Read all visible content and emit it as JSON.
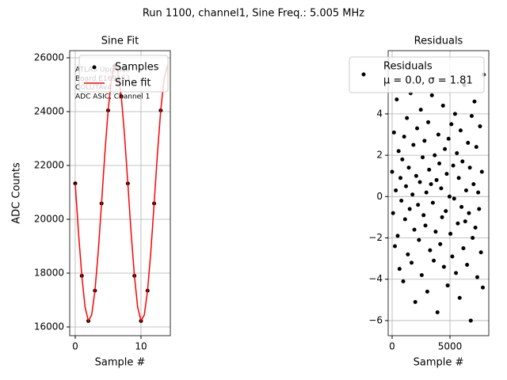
{
  "title": "Run 1100, channel1, Sine Freq.: 5.005 MHz",
  "chart_data": [
    {
      "type": "line",
      "title": "Sine Fit",
      "xlabel": "Sample #",
      "ylabel": "ADC Counts",
      "annotation": [
        "ATLAS Upgrade",
        " Board E169153",
        "COLUTAv4",
        "ADC ASIC, Channel 1"
      ],
      "xlim": [
        -0.84,
        14.46
      ],
      "xticks": [
        0,
        10
      ],
      "ylim": [
        15676,
        26265
      ],
      "yticks": [
        16000,
        18000,
        20000,
        22000,
        24000,
        26000
      ],
      "grid": true,
      "legend": "upper right",
      "series": [
        {
          "name": "Samples",
          "color": "#000000",
          "marker": "circle",
          "linestyle": "none",
          "x": [
            0,
            1,
            2,
            3,
            4,
            5,
            6,
            7,
            8,
            9,
            10,
            11,
            12,
            13
          ],
          "values": [
            21331,
            17901,
            16224,
            17350,
            20589,
            24043,
            25696,
            24570,
            21331,
            17901,
            16224,
            17350,
            20589,
            24043
          ]
        },
        {
          "name": "Sine fit",
          "color": "#ff0000",
          "marker": "none",
          "linestyle": "solid",
          "x": [
            0,
            0.5,
            1,
            1.5,
            2,
            2.5,
            3,
            3.5,
            4,
            4.5,
            5,
            5.5,
            6,
            6.5,
            7,
            7.5,
            8,
            8.5,
            9,
            9.5,
            10,
            10.5,
            11,
            11.5,
            12,
            12.5,
            13,
            13.5,
            14
          ],
          "values": [
            21331,
            19492,
            17901,
            16728,
            16224,
            16443,
            17350,
            18803,
            20589,
            22428,
            24043,
            25192,
            25696,
            25477,
            24570,
            23117,
            21331,
            19492,
            17901,
            16728,
            16224,
            16443,
            17350,
            18803,
            20589,
            22428,
            24043,
            25192,
            25696
          ]
        }
      ]
    },
    {
      "type": "scatter",
      "title": "Residuals",
      "xlabel": "Sample #",
      "xlim": [
        -342,
        8356
      ],
      "xticks": [
        0,
        5000
      ],
      "ylim": [
        -6.73,
        7.06
      ],
      "yticks": [
        {
          "value": -6,
          "label": "−6"
        },
        {
          "value": -4,
          "label": "−4"
        },
        {
          "value": -2,
          "label": "−2"
        },
        0,
        2,
        4
      ],
      "grid": true,
      "legend": "upper right",
      "stats_label": "μ = 0.0, σ = 1.81",
      "series": [
        {
          "name": "Residuals",
          "color": "#000000",
          "marker": "circle",
          "linestyle": "none",
          "x": [
            0,
            80,
            160,
            240,
            320,
            400,
            480,
            560,
            640,
            720,
            800,
            880,
            960,
            1040,
            1120,
            1200,
            1280,
            1360,
            1440,
            1520,
            1600,
            1680,
            1760,
            1840,
            1920,
            2000,
            2080,
            2160,
            2240,
            2320,
            2400,
            2480,
            2560,
            2640,
            2720,
            2800,
            2880,
            2960,
            3040,
            3120,
            3200,
            3280,
            3360,
            3440,
            3520,
            3600,
            3680,
            3760,
            3840,
            3920,
            4000,
            4080,
            4160,
            4240,
            4320,
            4400,
            4480,
            4560,
            4640,
            4720,
            4800,
            4880,
            4960,
            5040,
            5120,
            5200,
            5280,
            5360,
            5440,
            5520,
            5600,
            5680,
            5760,
            5840,
            5920,
            6000,
            6080,
            6160,
            6240,
            6320,
            6400,
            6480,
            6560,
            6640,
            6720,
            6800,
            6880,
            6960,
            7040,
            7120,
            7200,
            7280,
            7360,
            7440,
            7520,
            7600,
            7680,
            7760,
            7840,
            7920
          ],
          "values": [
            1.2,
            -0.8,
            3.1,
            -2.4,
            0.3,
            4.7,
            -1.9,
            2.2,
            -3.5,
            0.9,
            -0.2,
            1.8,
            -4.1,
            2.9,
            -1.1,
            0.5,
            3.8,
            -2.8,
            1.4,
            -0.6,
            5.0,
            -3.2,
            0.1,
            2.5,
            -1.6,
            -5.1,
            1.0,
            3.3,
            -0.4,
            -2.1,
            0.7,
            4.2,
            -3.8,
            1.9,
            -0.9,
            2.7,
            -1.4,
            0.2,
            -4.6,
            3.6,
            1.3,
            -2.6,
            0.6,
            4.9,
            -0.3,
            -3.1,
            2.0,
            -1.7,
            0.8,
            -5.6,
            3.0,
            1.6,
            -2.3,
            0.4,
            -1.0,
            4.4,
            -3.4,
            2.3,
            -0.7,
            1.1,
            -4.3,
            2.8,
            0.0,
            -1.8,
            3.5,
            -2.9,
            1.5,
            -0.1,
            4.0,
            -3.7,
            2.1,
            -1.3,
            0.9,
            -4.9,
            3.2,
            -0.5,
            1.7,
            -2.5,
            5.4,
            -1.2,
            0.3,
            -3.3,
            2.6,
            -0.8,
            1.4,
            -6.0,
            3.9,
            -2.0,
            0.6,
            4.6,
            -1.5,
            2.4,
            -3.9,
            0.2,
            -0.6,
            3.4,
            -2.7,
            1.2,
            -4.4,
            5.9
          ]
        }
      ]
    }
  ]
}
